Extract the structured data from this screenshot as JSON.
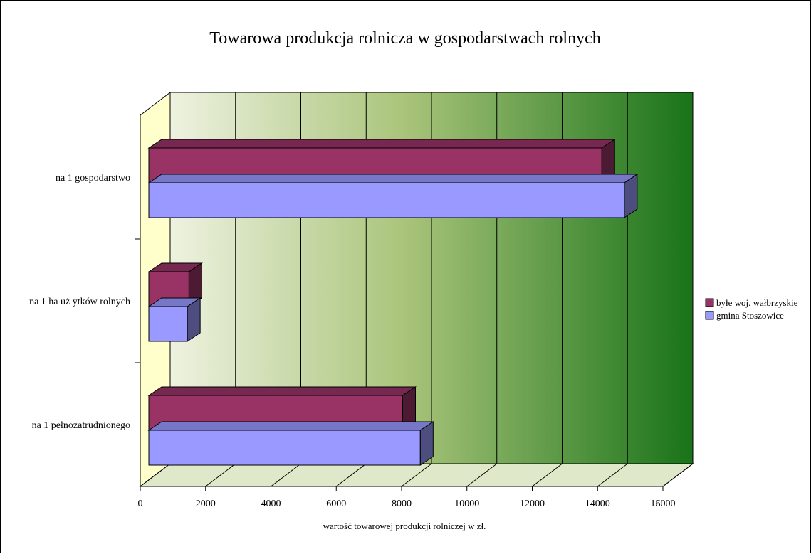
{
  "chart_data": {
    "type": "bar",
    "orientation": "horizontal",
    "style": "3d",
    "title": "Towarowa produkcja rolnicza w gospodarstwach rolnych",
    "xlabel": "wartość towarowej produkcji rolniczej w zł.",
    "ylabel": "",
    "xlim": [
      0,
      16000
    ],
    "xticks": [
      0,
      2000,
      4000,
      6000,
      8000,
      10000,
      12000,
      14000,
      16000
    ],
    "categories": [
      "na 1 gospodarstwo",
      "na 1 ha uż ytków rolnych",
      "na 1 pełnozatrudnionego"
    ],
    "series": [
      {
        "name": "byłe woj. wałbrzyskie",
        "color": "#993366",
        "values": [
          14100,
          1250,
          7900
        ]
      },
      {
        "name": "gmina Stoszowice",
        "color": "#9999ff",
        "values": [
          14800,
          1200,
          8450
        ]
      }
    ],
    "grid": true,
    "legend": "right",
    "background": "gradient light-yellow to dark-green"
  }
}
